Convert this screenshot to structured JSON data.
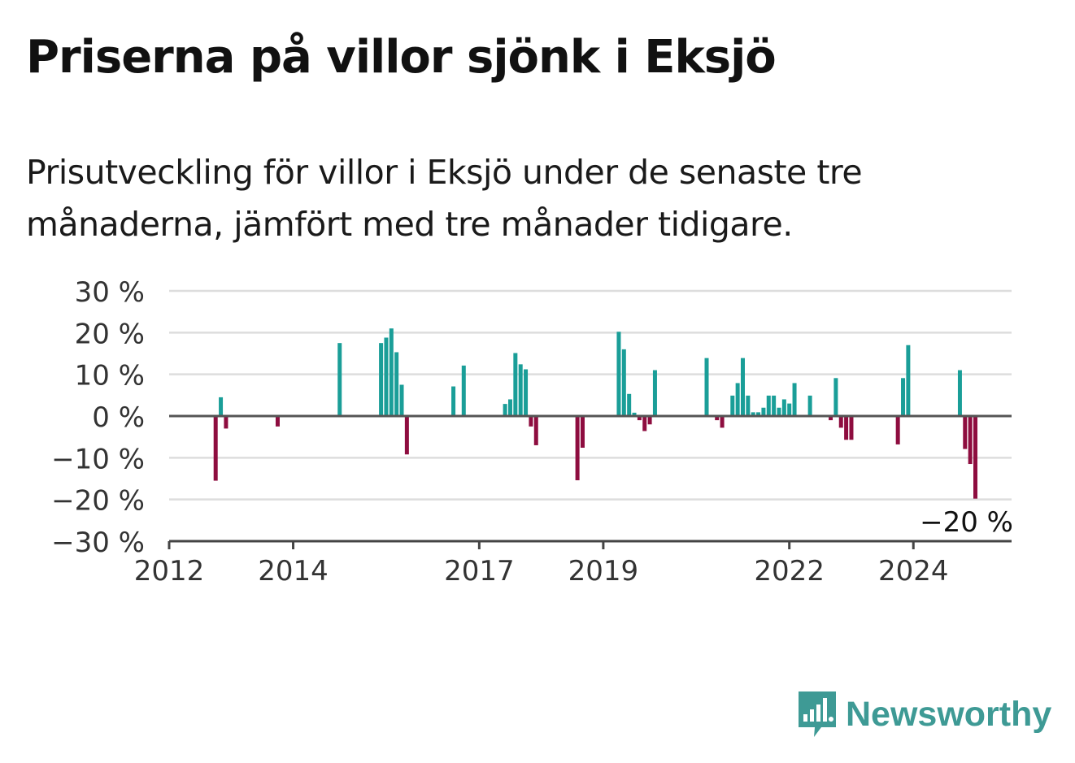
{
  "title": "Priserna på villor sjönk i Eksjö",
  "subtitle": "Prisutveckling för villor i Eksjö under de senaste tre månaderna, jämfört med tre månader tidigare.",
  "brand": {
    "name": "Newsworthy",
    "icon": "newsworthy-logo-icon"
  },
  "colors": {
    "positive": "#1a9e98",
    "negative": "#8e0d3f",
    "grid": "#dddddd",
    "axis": "#444444"
  },
  "chart_data": {
    "type": "bar",
    "ylim": [
      -30,
      30
    ],
    "yticks": [
      30,
      20,
      10,
      0,
      -10,
      -20,
      -30
    ],
    "ytick_labels": [
      "30 %",
      "20 %",
      "10 %",
      "0 %",
      "−10 %",
      "−20 %",
      "−30 %"
    ],
    "xlim": [
      "2012-01",
      "2025-08"
    ],
    "xticks": [
      {
        "label": "2012",
        "date": "2012-01"
      },
      {
        "label": "2014",
        "date": "2014-01"
      },
      {
        "label": "2017",
        "date": "2017-01"
      },
      {
        "label": "2019",
        "date": "2019-01"
      },
      {
        "label": "2022",
        "date": "2022-01"
      },
      {
        "label": "2024",
        "date": "2024-01"
      }
    ],
    "grid": true,
    "annotation": {
      "text": "−20 %",
      "date": "2025-02"
    },
    "points": [
      {
        "date": "2012-10",
        "value": -15.5
      },
      {
        "date": "2012-11",
        "value": 4.5
      },
      {
        "date": "2012-12",
        "value": -3
      },
      {
        "date": "2013-10",
        "value": -2.5
      },
      {
        "date": "2014-10",
        "value": 17.5
      },
      {
        "date": "2015-06",
        "value": 17.5
      },
      {
        "date": "2015-07",
        "value": 18.8
      },
      {
        "date": "2015-08",
        "value": 21
      },
      {
        "date": "2015-09",
        "value": 15.3
      },
      {
        "date": "2015-10",
        "value": 7.5
      },
      {
        "date": "2015-11",
        "value": -9.2
      },
      {
        "date": "2016-08",
        "value": 7.1
      },
      {
        "date": "2016-10",
        "value": 12.1
      },
      {
        "date": "2017-06",
        "value": 2.9
      },
      {
        "date": "2017-07",
        "value": 4
      },
      {
        "date": "2017-08",
        "value": 15.1
      },
      {
        "date": "2017-09",
        "value": 12.4
      },
      {
        "date": "2017-10",
        "value": 11.2
      },
      {
        "date": "2017-11",
        "value": -2.5
      },
      {
        "date": "2017-12",
        "value": -7
      },
      {
        "date": "2018-08",
        "value": -15.4
      },
      {
        "date": "2018-09",
        "value": -7.6
      },
      {
        "date": "2019-04",
        "value": 20.2
      },
      {
        "date": "2019-05",
        "value": 16
      },
      {
        "date": "2019-06",
        "value": 5.3
      },
      {
        "date": "2019-07",
        "value": 0.8
      },
      {
        "date": "2019-08",
        "value": -1
      },
      {
        "date": "2019-09",
        "value": -3.6
      },
      {
        "date": "2019-10",
        "value": -2
      },
      {
        "date": "2019-11",
        "value": 11
      },
      {
        "date": "2020-09",
        "value": 13.9
      },
      {
        "date": "2020-11",
        "value": -1
      },
      {
        "date": "2020-12",
        "value": -2.8
      },
      {
        "date": "2021-02",
        "value": 4.9
      },
      {
        "date": "2021-03",
        "value": 7.9
      },
      {
        "date": "2021-04",
        "value": 13.9
      },
      {
        "date": "2021-05",
        "value": 4.9
      },
      {
        "date": "2021-06",
        "value": 0.9
      },
      {
        "date": "2021-07",
        "value": 0.9
      },
      {
        "date": "2021-08",
        "value": 2
      },
      {
        "date": "2021-09",
        "value": 4.9
      },
      {
        "date": "2021-10",
        "value": 4.9
      },
      {
        "date": "2021-11",
        "value": 2
      },
      {
        "date": "2021-12",
        "value": 4
      },
      {
        "date": "2022-01",
        "value": 3
      },
      {
        "date": "2022-02",
        "value": 7.9
      },
      {
        "date": "2022-05",
        "value": 4.9
      },
      {
        "date": "2022-09",
        "value": -1
      },
      {
        "date": "2022-10",
        "value": 9.1
      },
      {
        "date": "2022-11",
        "value": -2.8
      },
      {
        "date": "2022-12",
        "value": -5.7
      },
      {
        "date": "2023-01",
        "value": -5.7
      },
      {
        "date": "2023-10",
        "value": -6.8
      },
      {
        "date": "2023-11",
        "value": 9.1
      },
      {
        "date": "2023-12",
        "value": 17
      },
      {
        "date": "2024-10",
        "value": 11
      },
      {
        "date": "2024-11",
        "value": -7.9
      },
      {
        "date": "2024-12",
        "value": -11.5
      },
      {
        "date": "2025-01",
        "value": -19.8
      }
    ]
  }
}
